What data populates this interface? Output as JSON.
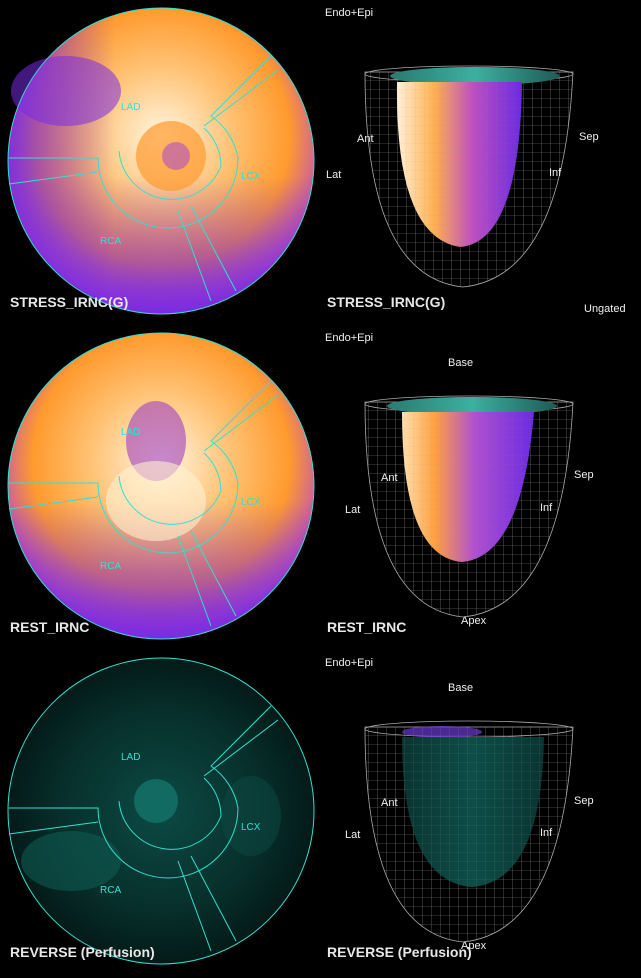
{
  "rows": [
    {
      "title_left": "STRESS_IRNC(G)",
      "title_right": "STRESS_IRNC(G)",
      "header": "Endo+Epi",
      "base": "",
      "apex": "",
      "status": "Ungated"
    },
    {
      "title_left": "REST_IRNC",
      "title_right": "REST_IRNC",
      "header": "Endo+Epi",
      "base": "Base",
      "apex": "Apex",
      "status": ""
    },
    {
      "title_left": "REVERSE (Perfusion)",
      "title_right": "REVERSE (Perfusion)",
      "header": "Endo+Epi",
      "base": "Base",
      "apex": "Apex",
      "status": ""
    }
  ],
  "territories": {
    "lad": "LAD",
    "lcx": "LCX",
    "rca": "RCA"
  },
  "orientation": {
    "ant": "Ant",
    "lat": "Lat",
    "inf": "Inf",
    "sep": "Sep"
  },
  "colors": {
    "territory_outline": "#30e0d0",
    "perfusion_hot": "#ff9a2e",
    "perfusion_low": "#8a2be2",
    "reverse_fill": "#0b3f3a",
    "mesh": "#9a9a9a"
  }
}
